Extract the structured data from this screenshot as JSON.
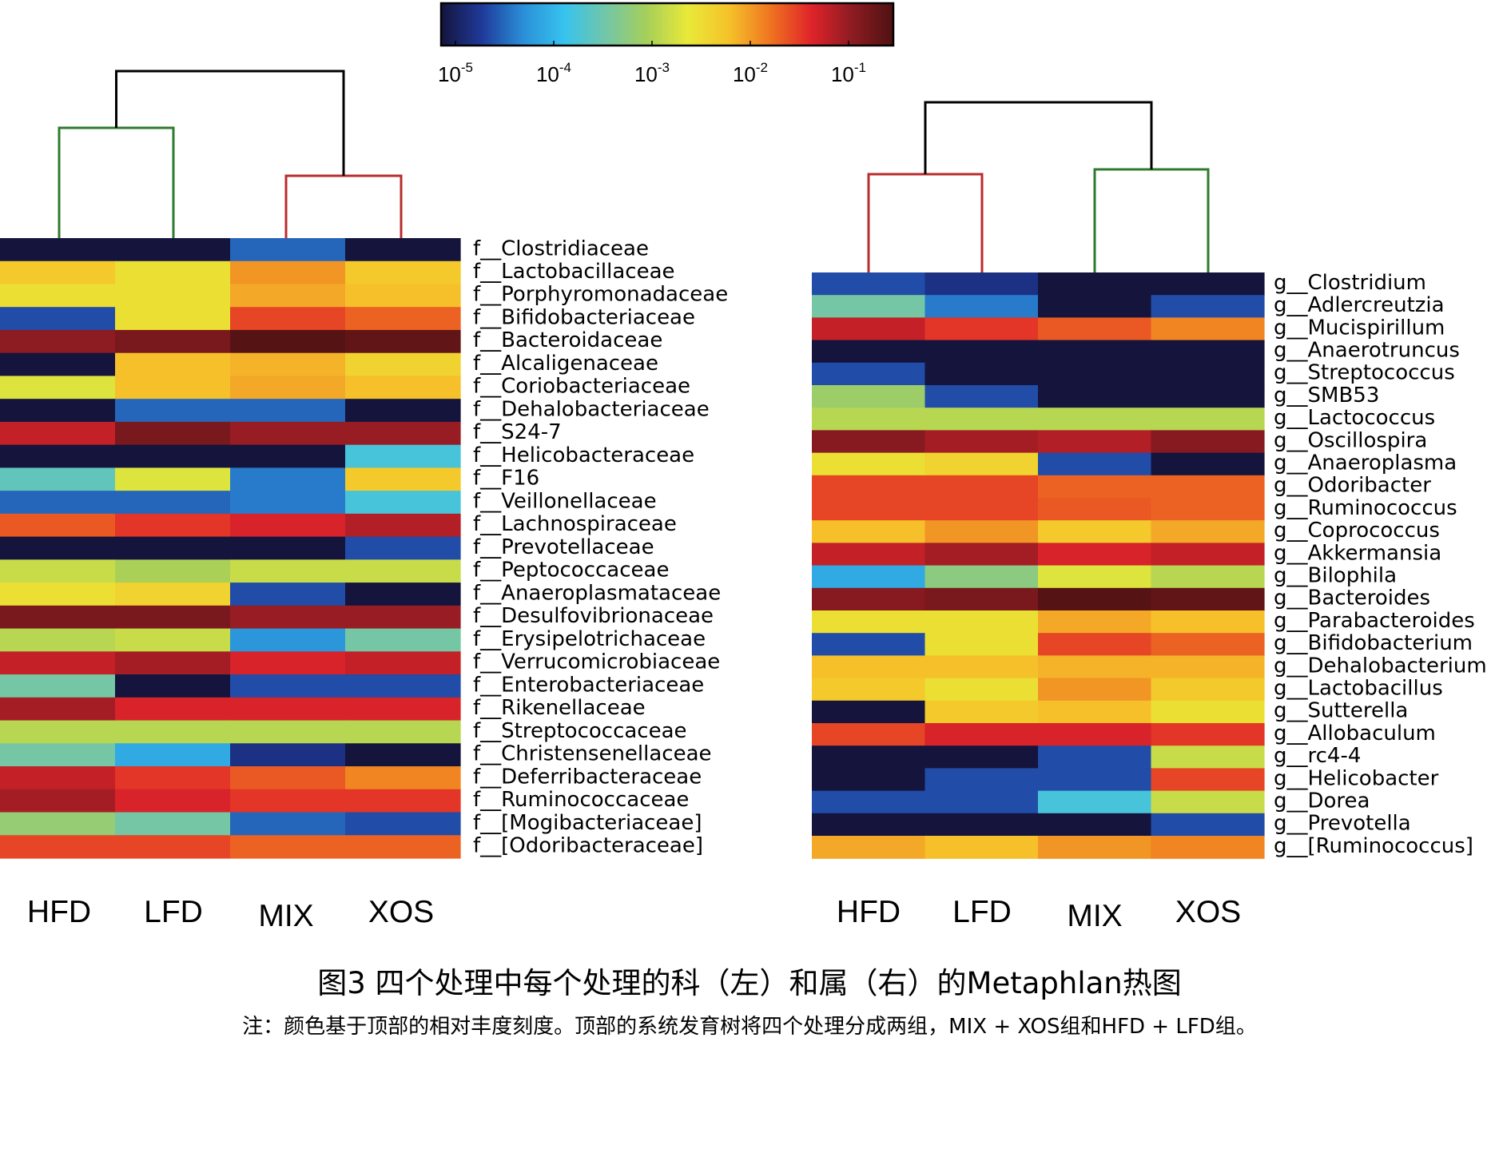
{
  "colorbar": {
    "ticks": [
      "10-5",
      "10-4",
      "10-3",
      "10-2",
      "10-1"
    ],
    "tick_base": "10",
    "tick_exponents": [
      "-5",
      "-4",
      "-3",
      "-2",
      "-1"
    ],
    "stops": [
      "#14143c",
      "#1f3a9a",
      "#2a8fd8",
      "#37c3ee",
      "#72c6a8",
      "#a6cf5a",
      "#e9e938",
      "#f5c22a",
      "#ef7520",
      "#e0242a",
      "#8d1b22",
      "#4e1212"
    ]
  },
  "colors": {
    "dendro_black": "#000000",
    "dendro_green": "#2e7a2e",
    "dendro_red": "#b82c2c"
  },
  "chart_data": [
    {
      "type": "heatmap",
      "title": "",
      "scale": "log10",
      "value_range": [
        1e-05,
        0.2
      ],
      "columns": [
        "HFD",
        "LFD",
        "MIX",
        "XOS"
      ],
      "rows": [
        "f__Clostridiaceae",
        "f__Lactobacillaceae",
        "f__Porphyromonadaceae",
        "f__Bifidobacteriaceae",
        "f__Bacteroidaceae",
        "f__Alcaligenaceae",
        "f__Coriobacteriaceae",
        "f__Dehalobacteriaceae",
        "f__S24-7",
        "f__Helicobacteraceae",
        "f__F16",
        "f__Veillonellaceae",
        "f__Lachnospiraceae",
        "f__Prevotellaceae",
        "f__Peptococcaceae",
        "f__Anaeroplasmataceae",
        "f__Desulfovibrionaceae",
        "f__Erysipelotrichaceae",
        "f__Verrucomicrobiaceae",
        "f__Enterobacteriaceae",
        "f__Rikenellaceae",
        "f__Streptococcaceae",
        "f__Christensenellaceae",
        "f__Deferribacteraceae",
        "f__Ruminococcaceae",
        "f__[Mogibacteriaceae]",
        "f__[Odoribacteraceae]"
      ],
      "values": [
        [
          1e-05,
          1e-05,
          4e-05,
          1e-05
        ],
        [
          0.005,
          0.003,
          0.01,
          0.005
        ],
        [
          0.003,
          0.003,
          0.008,
          0.006
        ],
        [
          3e-05,
          0.003,
          0.025,
          0.018
        ],
        [
          0.09,
          0.12,
          0.2,
          0.17
        ],
        [
          1e-05,
          0.006,
          0.007,
          0.004
        ],
        [
          0.002,
          0.006,
          0.008,
          0.006
        ],
        [
          1e-05,
          4e-05,
          4e-05,
          1e-05
        ],
        [
          0.05,
          0.12,
          0.08,
          0.08
        ],
        [
          1e-05,
          1e-05,
          1e-05,
          0.0002
        ],
        [
          0.0003,
          0.002,
          5e-05,
          0.005
        ],
        [
          4e-05,
          4e-05,
          5e-05,
          0.0002
        ],
        [
          0.02,
          0.03,
          0.04,
          0.06
        ],
        [
          1e-05,
          1e-05,
          1e-05,
          3e-05
        ],
        [
          0.0015,
          0.001,
          0.0015,
          0.0015
        ],
        [
          0.003,
          0.004,
          3e-05,
          1e-05
        ],
        [
          0.12,
          0.12,
          0.08,
          0.08
        ],
        [
          0.0012,
          0.0015,
          7e-05,
          0.0004
        ],
        [
          0.05,
          0.07,
          0.04,
          0.05
        ],
        [
          0.0004,
          1e-05,
          3e-05,
          3e-05
        ],
        [
          0.07,
          0.04,
          0.04,
          0.04
        ],
        [
          0.0012,
          0.0012,
          0.0012,
          0.0012
        ],
        [
          0.0004,
          0.0001,
          2e-05,
          1e-05
        ],
        [
          0.05,
          0.03,
          0.02,
          0.012
        ],
        [
          0.07,
          0.04,
          0.03,
          0.03
        ],
        [
          0.0007,
          0.0004,
          4e-05,
          3e-05
        ],
        [
          0.025,
          0.025,
          0.018,
          0.018
        ]
      ]
    },
    {
      "type": "heatmap",
      "title": "",
      "scale": "log10",
      "value_range": [
        1e-05,
        0.2
      ],
      "columns": [
        "HFD",
        "LFD",
        "MIX",
        "XOS"
      ],
      "rows": [
        "g__Clostridium",
        "g__Adlercreutzia",
        "g__Mucispirillum",
        "g__Anaerotruncus",
        "g__Streptococcus",
        "g__SMB53",
        "g__Lactococcus",
        "g__Oscillospira",
        "g__Anaeroplasma",
        "g__Odoribacter",
        "g__Ruminococcus",
        "g__Coprococcus",
        "g__Akkermansia",
        "g__Bilophila",
        "g__Bacteroides",
        "g__Parabacteroides",
        "g__Bifidobacterium",
        "g__Dehalobacterium",
        "g__Lactobacillus",
        "g__Sutterella",
        "g__Allobaculum",
        "g__rc4-4",
        "g__Helicobacter",
        "g__Dorea",
        "g__Prevotella",
        "g__[Ruminococcus]"
      ],
      "values": [
        [
          3e-05,
          2e-05,
          1e-05,
          1e-05
        ],
        [
          0.0004,
          5e-05,
          1e-05,
          3e-05
        ],
        [
          0.05,
          0.03,
          0.02,
          0.012
        ],
        [
          1e-05,
          1e-05,
          1e-05,
          1e-05
        ],
        [
          3e-05,
          1e-05,
          1e-05,
          1e-05
        ],
        [
          0.0008,
          3e-05,
          1e-05,
          1e-05
        ],
        [
          0.0012,
          0.0012,
          0.0012,
          0.0012
        ],
        [
          0.1,
          0.07,
          0.06,
          0.1
        ],
        [
          0.003,
          0.004,
          3e-05,
          1e-05
        ],
        [
          0.025,
          0.025,
          0.018,
          0.018
        ],
        [
          0.025,
          0.025,
          0.02,
          0.018
        ],
        [
          0.006,
          0.01,
          0.005,
          0.008
        ],
        [
          0.05,
          0.07,
          0.04,
          0.05
        ],
        [
          0.0001,
          0.0006,
          0.002,
          0.0012
        ],
        [
          0.1,
          0.12,
          0.2,
          0.17
        ],
        [
          0.003,
          0.003,
          0.008,
          0.006
        ],
        [
          3e-05,
          0.003,
          0.025,
          0.018
        ],
        [
          0.006,
          0.006,
          0.007,
          0.007
        ],
        [
          0.005,
          0.003,
          0.01,
          0.005
        ],
        [
          1e-05,
          0.005,
          0.006,
          0.003
        ],
        [
          0.025,
          0.04,
          0.04,
          0.03
        ],
        [
          1e-05,
          1e-05,
          3e-05,
          0.0015
        ],
        [
          1e-05,
          3e-05,
          3e-05,
          0.025
        ],
        [
          3e-05,
          3e-05,
          0.0002,
          0.0015
        ],
        [
          1e-05,
          1e-05,
          1e-05,
          3e-05
        ],
        [
          0.008,
          0.006,
          0.01,
          0.012
        ]
      ]
    }
  ],
  "caption": {
    "title": "图3 四个处理中每个处理的科（左）和属（右）的Metaphlan热图",
    "note": "注：颜色基于顶部的相对丰度刻度。顶部的系统发育树将四个处理分成两组，MIX + XOS组和HFD + LFD组。"
  }
}
